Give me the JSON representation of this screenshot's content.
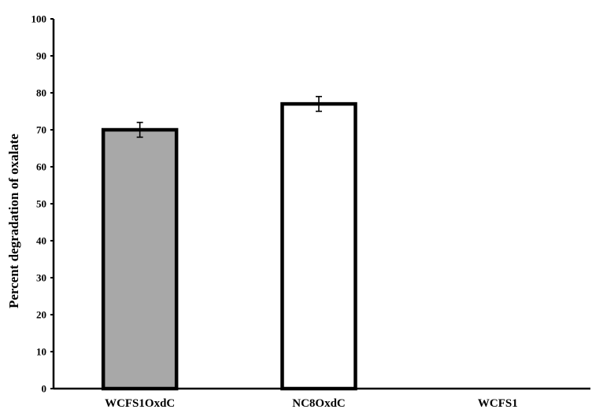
{
  "chart_data": {
    "type": "bar",
    "title": "",
    "xlabel": "",
    "ylabel": "Percent degradation of oxalate",
    "ylim": [
      0,
      100
    ],
    "yticks": [
      0,
      10,
      20,
      30,
      40,
      50,
      60,
      70,
      80,
      90,
      100
    ],
    "categories": [
      "WCFS1OxdC",
      "NC8OxdC",
      "WCFS1"
    ],
    "values": [
      70,
      77,
      0
    ],
    "errors": [
      2,
      2,
      0
    ],
    "bar_colors": [
      "#a8a8a8",
      "#ffffff",
      "#ffffff"
    ],
    "edge_color": "#000000",
    "grid": false,
    "legend": "none"
  }
}
